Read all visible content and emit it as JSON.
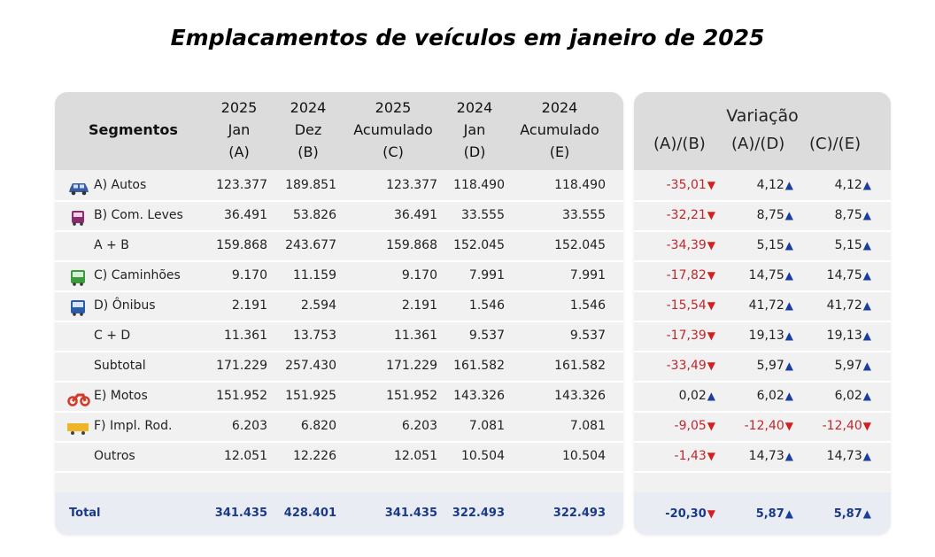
{
  "title": "Emplacamentos de veículos em janeiro de 2025",
  "headers": {
    "segmentos": "Segmentos",
    "col_a": [
      "2025",
      "Jan",
      "(A)"
    ],
    "col_b": [
      "2024",
      "Dez",
      "(B)"
    ],
    "col_c": [
      "2025",
      "Acumulado",
      "(C)"
    ],
    "col_d": [
      "2024",
      "Jan",
      "(D)"
    ],
    "col_e": [
      "2024",
      "Acumulado",
      "(E)"
    ],
    "variacao": "Variação",
    "var_ab": "(A)/(B)",
    "var_ad": "(A)/(D)",
    "var_ce": "(C)/(E)"
  },
  "rows": [
    {
      "label": "A) Autos",
      "icon": "car-icon",
      "a": "123.377",
      "b": "189.851",
      "c": "123.377",
      "d": "118.490",
      "e": "118.490",
      "ab": "-35,01",
      "ab_dir": "down",
      "ad": "4,12",
      "ad_dir": "up",
      "ce": "4,12",
      "ce_dir": "up"
    },
    {
      "label": "B) Com. Leves",
      "icon": "van-icon",
      "a": "36.491",
      "b": "53.826",
      "c": "36.491",
      "d": "33.555",
      "e": "33.555",
      "ab": "-32,21",
      "ab_dir": "down",
      "ad": "8,75",
      "ad_dir": "up",
      "ce": "8,75",
      "ce_dir": "up"
    },
    {
      "label": "A + B",
      "icon": "",
      "a": "159.868",
      "b": "243.677",
      "c": "159.868",
      "d": "152.045",
      "e": "152.045",
      "ab": "-34,39",
      "ab_dir": "down",
      "ad": "5,15",
      "ad_dir": "up",
      "ce": "5,15",
      "ce_dir": "up"
    },
    {
      "label": "C) Caminhões",
      "icon": "truck-icon",
      "a": "9.170",
      "b": "11.159",
      "c": "9.170",
      "d": "7.991",
      "e": "7.991",
      "ab": "-17,82",
      "ab_dir": "down",
      "ad": "14,75",
      "ad_dir": "up",
      "ce": "14,75",
      "ce_dir": "up"
    },
    {
      "label": "D) Ônibus",
      "icon": "bus-icon",
      "a": "2.191",
      "b": "2.594",
      "c": "2.191",
      "d": "1.546",
      "e": "1.546",
      "ab": "-15,54",
      "ab_dir": "down",
      "ad": "41,72",
      "ad_dir": "up",
      "ce": "41,72",
      "ce_dir": "up"
    },
    {
      "label": "C + D",
      "icon": "",
      "a": "11.361",
      "b": "13.753",
      "c": "11.361",
      "d": "9.537",
      "e": "9.537",
      "ab": "-17,39",
      "ab_dir": "down",
      "ad": "19,13",
      "ad_dir": "up",
      "ce": "19,13",
      "ce_dir": "up"
    },
    {
      "label": "Subtotal",
      "icon": "",
      "a": "171.229",
      "b": "257.430",
      "c": "171.229",
      "d": "161.582",
      "e": "161.582",
      "ab": "-33,49",
      "ab_dir": "down",
      "ad": "5,97",
      "ad_dir": "up",
      "ce": "5,97",
      "ce_dir": "up"
    },
    {
      "label": "E) Motos",
      "icon": "motorcycle-icon",
      "a": "151.952",
      "b": "151.925",
      "c": "151.952",
      "d": "143.326",
      "e": "143.326",
      "ab": "0,02",
      "ab_dir": "up",
      "ad": "6,02",
      "ad_dir": "up",
      "ce": "6,02",
      "ce_dir": "up"
    },
    {
      "label": "F) Impl. Rod.",
      "icon": "trailer-icon",
      "a": "6.203",
      "b": "6.820",
      "c": "6.203",
      "d": "7.081",
      "e": "7.081",
      "ab": "-9,05",
      "ab_dir": "down",
      "ad": "-12,40",
      "ad_dir": "down",
      "ce": "-12,40",
      "ce_dir": "down"
    },
    {
      "label": "Outros",
      "icon": "",
      "a": "12.051",
      "b": "12.226",
      "c": "12.051",
      "d": "10.504",
      "e": "10.504",
      "ab": "-1,43",
      "ab_dir": "down",
      "ad": "14,73",
      "ad_dir": "up",
      "ce": "14,73",
      "ce_dir": "up"
    }
  ],
  "total": {
    "label": "Total",
    "a": "341.435",
    "b": "428.401",
    "c": "341.435",
    "d": "322.493",
    "e": "322.493",
    "ab": "-20,30",
    "ab_dir": "down",
    "ad": "5,87",
    "ad_dir": "up",
    "ce": "5,87",
    "ce_dir": "up"
  },
  "colors": {
    "up": "#1a3fa0",
    "down": "#d21f1f",
    "car": "#3b5ba5",
    "van": "#8a2b6e",
    "truck": "#3d9a3d",
    "bus": "#2e5ba8",
    "moto": "#d23a2a",
    "trailer": "#f0b429",
    "total_text": "#1a3a88"
  }
}
